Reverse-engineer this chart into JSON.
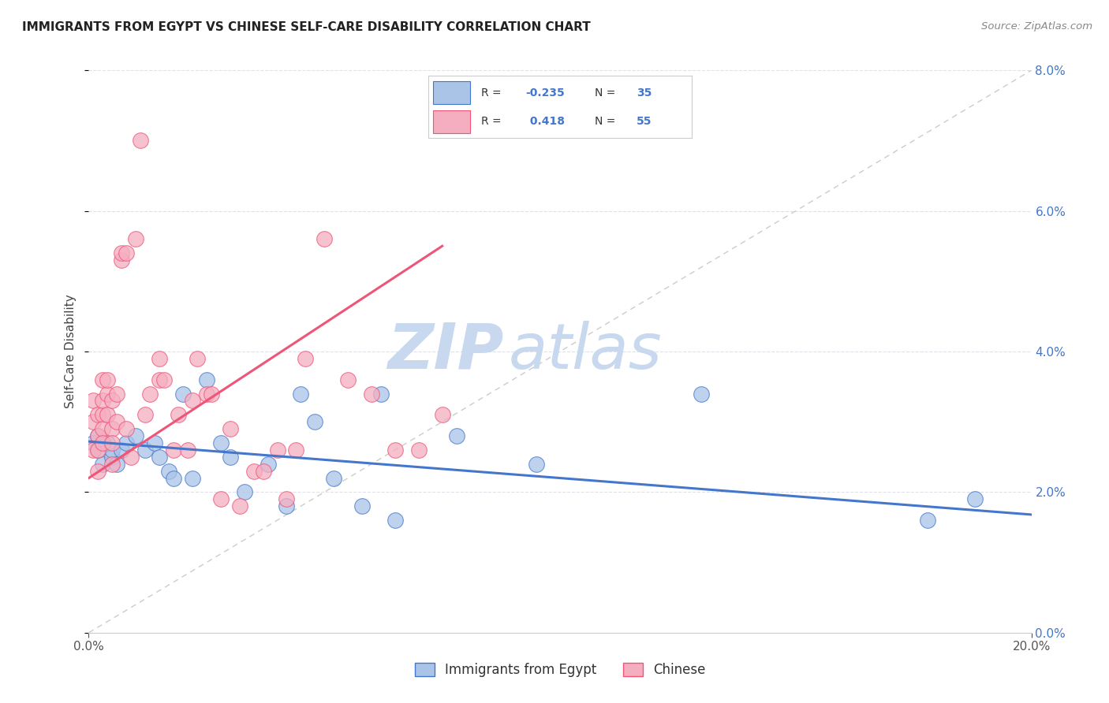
{
  "title": "IMMIGRANTS FROM EGYPT VS CHINESE SELF-CARE DISABILITY CORRELATION CHART",
  "source": "Source: ZipAtlas.com",
  "ylabel": "Self-Care Disability",
  "legend_label1": "Immigrants from Egypt",
  "legend_label2": "Chinese",
  "R1": "-0.235",
  "N1": "35",
  "R2": "0.418",
  "N2": "55",
  "xlim": [
    0.0,
    0.2
  ],
  "ylim": [
    0.0,
    0.08
  ],
  "xticks": [
    0.0,
    0.2
  ],
  "yticks": [
    0.0,
    0.02,
    0.04,
    0.06,
    0.08
  ],
  "color_blue_fill": "#aac4e8",
  "color_pink_fill": "#f5aec0",
  "color_blue_line": "#4477cc",
  "color_pink_line": "#ee5577",
  "color_diag": "#cccccc",
  "blue_x": [
    0.001,
    0.002,
    0.002,
    0.003,
    0.004,
    0.005,
    0.005,
    0.006,
    0.007,
    0.008,
    0.01,
    0.012,
    0.014,
    0.015,
    0.017,
    0.018,
    0.02,
    0.022,
    0.025,
    0.028,
    0.03,
    0.033,
    0.038,
    0.042,
    0.045,
    0.048,
    0.052,
    0.058,
    0.062,
    0.065,
    0.078,
    0.095,
    0.13,
    0.178,
    0.188
  ],
  "blue_y": [
    0.027,
    0.026,
    0.028,
    0.024,
    0.027,
    0.025,
    0.026,
    0.024,
    0.026,
    0.027,
    0.028,
    0.026,
    0.027,
    0.025,
    0.023,
    0.022,
    0.034,
    0.022,
    0.036,
    0.027,
    0.025,
    0.02,
    0.024,
    0.018,
    0.034,
    0.03,
    0.022,
    0.018,
    0.034,
    0.016,
    0.028,
    0.024,
    0.034,
    0.016,
    0.019
  ],
  "pink_x": [
    0.001,
    0.001,
    0.001,
    0.002,
    0.002,
    0.002,
    0.002,
    0.003,
    0.003,
    0.003,
    0.003,
    0.003,
    0.004,
    0.004,
    0.004,
    0.005,
    0.005,
    0.005,
    0.005,
    0.006,
    0.006,
    0.007,
    0.007,
    0.008,
    0.008,
    0.009,
    0.01,
    0.011,
    0.012,
    0.013,
    0.015,
    0.015,
    0.016,
    0.018,
    0.019,
    0.021,
    0.022,
    0.023,
    0.025,
    0.026,
    0.028,
    0.03,
    0.032,
    0.035,
    0.037,
    0.04,
    0.042,
    0.044,
    0.046,
    0.05,
    0.055,
    0.06,
    0.065,
    0.07,
    0.075
  ],
  "pink_y": [
    0.026,
    0.03,
    0.033,
    0.028,
    0.031,
    0.026,
    0.023,
    0.031,
    0.029,
    0.027,
    0.036,
    0.033,
    0.034,
    0.036,
    0.031,
    0.029,
    0.027,
    0.033,
    0.024,
    0.034,
    0.03,
    0.053,
    0.054,
    0.054,
    0.029,
    0.025,
    0.056,
    0.07,
    0.031,
    0.034,
    0.039,
    0.036,
    0.036,
    0.026,
    0.031,
    0.026,
    0.033,
    0.039,
    0.034,
    0.034,
    0.019,
    0.029,
    0.018,
    0.023,
    0.023,
    0.026,
    0.019,
    0.026,
    0.039,
    0.056,
    0.036,
    0.034,
    0.026,
    0.026,
    0.031
  ],
  "background_color": "#ffffff",
  "watermark_zip": "ZIP",
  "watermark_atlas": "atlas",
  "watermark_color": "#c8d8ee"
}
